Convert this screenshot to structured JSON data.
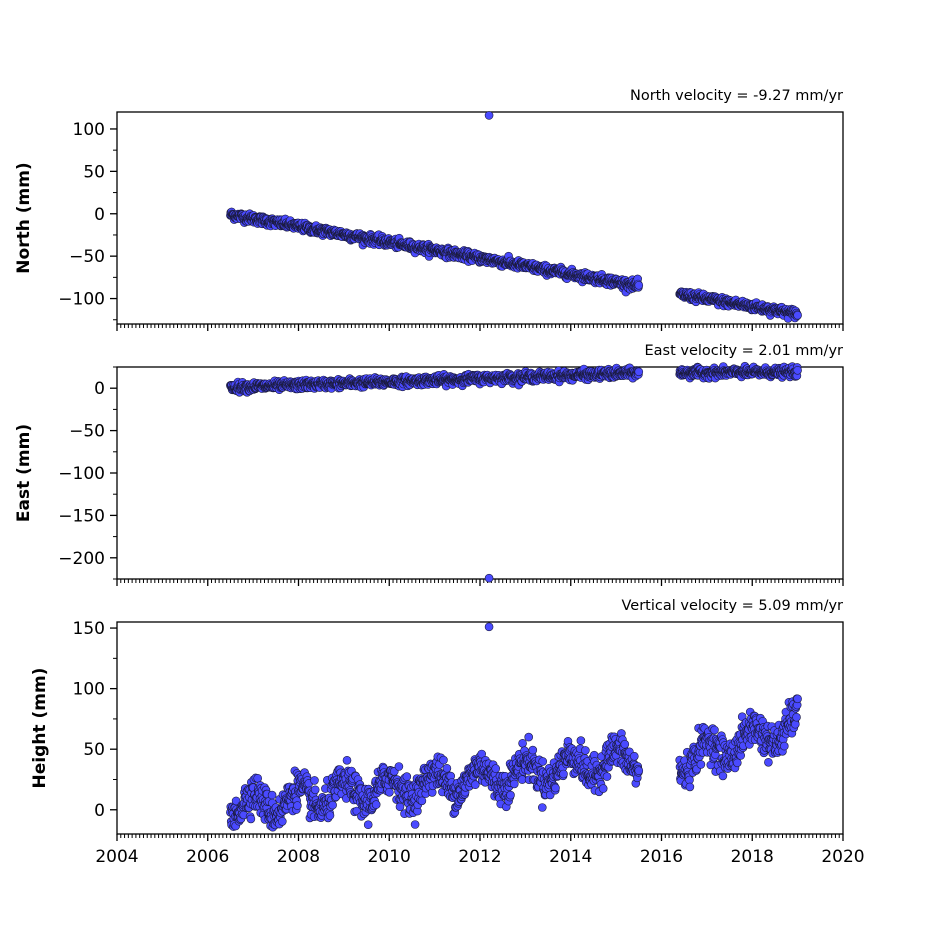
{
  "chart_data": [
    {
      "type": "scatter",
      "title": "North velocity = -9.27 mm/yr",
      "ylabel": "North (mm)",
      "xlim": [
        2004,
        2020
      ],
      "ylim": [
        -130,
        120
      ],
      "yticks": [
        -100,
        -50,
        0,
        50,
        100
      ],
      "xtick_labels_shown": false,
      "marker_color": "#4a4aff",
      "trend": [
        {
          "x0": 2006.5,
          "x1": 2015.5,
          "y0": -1,
          "y1": -85,
          "noise": 2.5
        },
        {
          "x0": 2016.4,
          "x1": 2019.0,
          "y0": -95,
          "y1": -118,
          "noise": 2.5
        }
      ],
      "outliers": [
        {
          "x": 2012.2,
          "y": 116
        }
      ]
    },
    {
      "type": "scatter",
      "title": "East velocity = 2.01 mm/yr",
      "ylabel": "East (mm)",
      "xlim": [
        2004,
        2020
      ],
      "ylim": [
        -225,
        25
      ],
      "yticks": [
        -200,
        -150,
        -100,
        -50,
        0
      ],
      "xtick_labels_shown": false,
      "marker_color": "#4a4aff",
      "trend": [
        {
          "x0": 2006.5,
          "x1": 2015.5,
          "y0": 1,
          "y1": 18,
          "noise": 2.5
        },
        {
          "x0": 2016.4,
          "x1": 2019.0,
          "y0": 18,
          "y1": 19,
          "noise": 2.5
        }
      ],
      "outliers": [
        {
          "x": 2012.2,
          "y": -224
        }
      ]
    },
    {
      "type": "scatter",
      "title": "Vertical velocity = 5.09 mm/yr",
      "ylabel": "Height (mm)",
      "xlim": [
        2004,
        2020
      ],
      "ylim": [
        -20,
        155
      ],
      "yticks": [
        0,
        50,
        100,
        150
      ],
      "xticks": [
        2004,
        2006,
        2008,
        2010,
        2012,
        2014,
        2016,
        2018,
        2020
      ],
      "xtick_labels_shown": true,
      "marker_color": "#4a4aff",
      "trend": [
        {
          "x0": 2006.5,
          "x1": 2015.5,
          "y0": 2,
          "y1": 42,
          "noise": 7,
          "seasonal_amplitude": 10
        },
        {
          "x0": 2016.4,
          "x1": 2019.0,
          "y0": 40,
          "y1": 70,
          "noise": 7,
          "seasonal_amplitude": 10
        }
      ],
      "outliers": [
        {
          "x": 2012.2,
          "y": 151
        }
      ]
    }
  ]
}
